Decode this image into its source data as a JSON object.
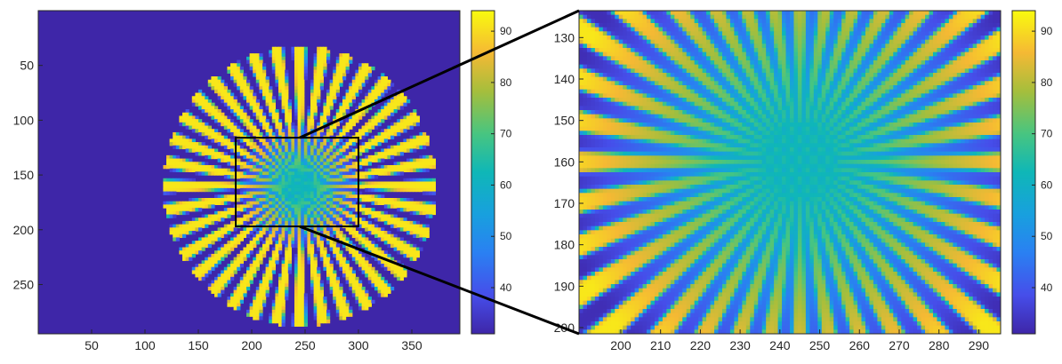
{
  "chart_data": [
    {
      "type": "heatmap",
      "title": "",
      "xlabel": "",
      "ylabel": "",
      "description_source": "left panel: full image",
      "x_ticks": [
        50,
        100,
        150,
        200,
        250,
        300,
        350
      ],
      "y_ticks": [
        50,
        100,
        150,
        200,
        250
      ],
      "xlim": [
        0,
        395
      ],
      "ylim": [
        0,
        295
      ],
      "y_direction": "reverse",
      "colormap": "parula",
      "clim": [
        31,
        94
      ],
      "colorbar_ticks": [
        40,
        50,
        60,
        70,
        80,
        90
      ],
      "pattern": {
        "name": "siemens-star",
        "center": [
          245,
          160
        ],
        "radius": 128,
        "spokes": 36,
        "spoke_value": 92,
        "background_value": 33,
        "center_blur_value": 62
      },
      "zoom_box": {
        "x": [
          185,
          300
        ],
        "y": [
          116,
          197
        ]
      }
    },
    {
      "type": "heatmap",
      "title": "",
      "xlabel": "",
      "ylabel": "",
      "x_ticks": [
        200,
        210,
        220,
        230,
        240,
        250,
        260,
        270,
        280,
        290
      ],
      "y_ticks": [
        130,
        140,
        150,
        160,
        170,
        180,
        190,
        200
      ],
      "xlim": [
        189.5,
        295.5
      ],
      "ylim": [
        123.5,
        201.5
      ],
      "y_direction": "reverse",
      "colormap": "parula",
      "clim": [
        31,
        94
      ],
      "colorbar_ticks": [
        40,
        50,
        60,
        70,
        80,
        90
      ]
    }
  ]
}
